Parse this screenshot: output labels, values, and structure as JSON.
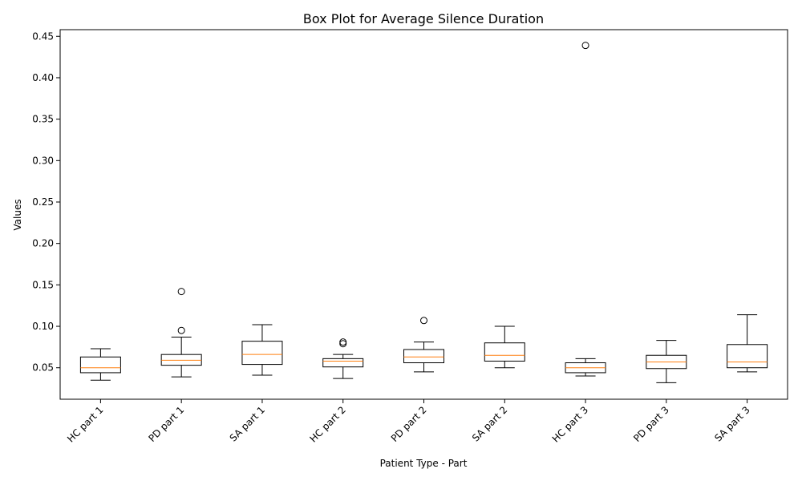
{
  "chart_data": {
    "type": "box",
    "title": "Box Plot for Average Silence Duration",
    "xlabel": "Patient Type - Part",
    "ylabel": "Values",
    "ylim": [
      0.012,
      0.458
    ],
    "yticks": [
      "0.05",
      "0.10",
      "0.15",
      "0.20",
      "0.25",
      "0.30",
      "0.35",
      "0.40",
      "0.45"
    ],
    "ytick_values": [
      0.05,
      0.1,
      0.15,
      0.2,
      0.25,
      0.3,
      0.35,
      0.4,
      0.45
    ],
    "grid": false,
    "colors": {
      "box": "#000000",
      "median": "#ff7f0e",
      "flier": "#000000"
    },
    "categories": [
      "HC part 1",
      "PD part 1",
      "SA part 1",
      "HC part 2",
      "PD part 2",
      "SA part 2",
      "HC part 3",
      "PD part 3",
      "SA part 3"
    ],
    "boxes": [
      {
        "whislo": 0.035,
        "q1": 0.044,
        "med": 0.05,
        "q3": 0.063,
        "whishi": 0.073,
        "fliers": []
      },
      {
        "whislo": 0.039,
        "q1": 0.053,
        "med": 0.059,
        "q3": 0.066,
        "whishi": 0.087,
        "fliers": [
          0.095,
          0.142
        ]
      },
      {
        "whislo": 0.041,
        "q1": 0.054,
        "med": 0.066,
        "q3": 0.082,
        "whishi": 0.102,
        "fliers": []
      },
      {
        "whislo": 0.037,
        "q1": 0.051,
        "med": 0.058,
        "q3": 0.061,
        "whishi": 0.066,
        "fliers": [
          0.079,
          0.081
        ]
      },
      {
        "whislo": 0.045,
        "q1": 0.056,
        "med": 0.063,
        "q3": 0.072,
        "whishi": 0.081,
        "fliers": [
          0.107
        ]
      },
      {
        "whislo": 0.05,
        "q1": 0.058,
        "med": 0.065,
        "q3": 0.08,
        "whishi": 0.1,
        "fliers": []
      },
      {
        "whislo": 0.04,
        "q1": 0.044,
        "med": 0.05,
        "q3": 0.056,
        "whishi": 0.061,
        "fliers": [
          0.439
        ]
      },
      {
        "whislo": 0.032,
        "q1": 0.049,
        "med": 0.057,
        "q3": 0.065,
        "whishi": 0.083,
        "fliers": []
      },
      {
        "whislo": 0.045,
        "q1": 0.05,
        "med": 0.057,
        "q3": 0.078,
        "whishi": 0.114,
        "fliers": []
      }
    ]
  }
}
